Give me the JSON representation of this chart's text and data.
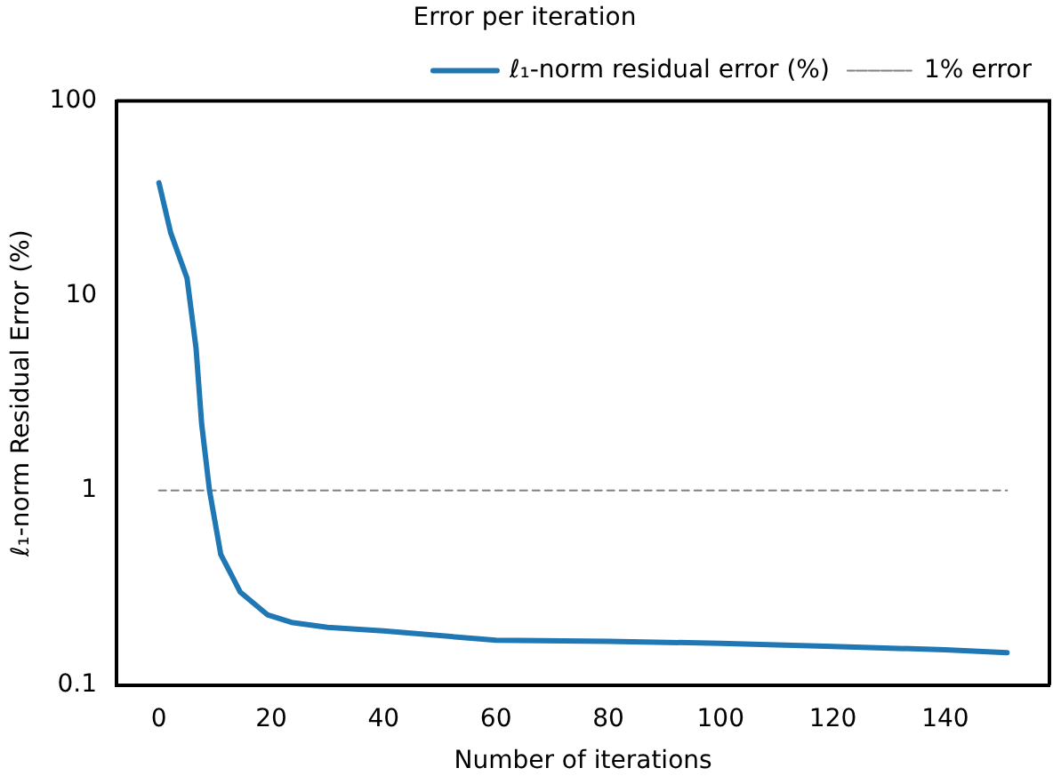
{
  "chart_data": {
    "type": "line",
    "title": "Error per iteration",
    "xlabel": "Number of iterations",
    "ylabel": "ℓ₁-norm Residual Error (%)",
    "series": [
      {
        "name": "ℓ₁-norm residual error (%)",
        "color": "#1f77b4",
        "x": [
          0,
          2.1,
          5,
          6.6,
          7.6,
          9,
          11,
          14.5,
          19.3,
          23.6,
          30,
          40,
          60,
          80,
          100,
          120,
          140,
          151
        ],
        "values": [
          38,
          21,
          12.3,
          5.4,
          2.2,
          1.0,
          0.47,
          0.3,
          0.23,
          0.21,
          0.198,
          0.19,
          0.17,
          0.168,
          0.164,
          0.158,
          0.152,
          0.147
        ]
      },
      {
        "name": "1% error",
        "color": "#808080",
        "line_style": "dashed",
        "x": [
          0,
          151
        ],
        "values": [
          1,
          1
        ]
      }
    ],
    "xlim": [
      -7.55,
      158.55
    ],
    "xticks": [
      0,
      20,
      40,
      60,
      80,
      100,
      120,
      140
    ],
    "ylim": [
      0.1,
      100
    ],
    "yticks": [
      0.1,
      1,
      10,
      100
    ],
    "log": "y",
    "grid": false,
    "legend": "top right"
  }
}
